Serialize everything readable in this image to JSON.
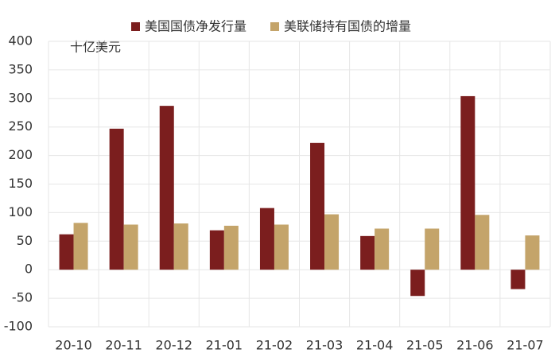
{
  "chart_data": {
    "type": "bar",
    "annotation": "十亿美元",
    "categories": [
      "20-10",
      "20-11",
      "20-12",
      "21-01",
      "21-02",
      "21-03",
      "21-04",
      "21-05",
      "21-06",
      "21-07"
    ],
    "series": [
      {
        "name": "美国国债净发行量",
        "color": "#7b1e1e",
        "values": [
          62,
          247,
          287,
          69,
          108,
          222,
          59,
          -46,
          304,
          -34
        ]
      },
      {
        "name": "美联储持有国债的增量",
        "color": "#c4a46a",
        "values": [
          82,
          79,
          81,
          77,
          79,
          97,
          72,
          72,
          96,
          60
        ]
      }
    ],
    "ylim": [
      -100,
      400
    ],
    "yticks": [
      -100,
      -50,
      0,
      50,
      100,
      150,
      200,
      250,
      300,
      350,
      400
    ],
    "grid": true,
    "legend": "top"
  }
}
